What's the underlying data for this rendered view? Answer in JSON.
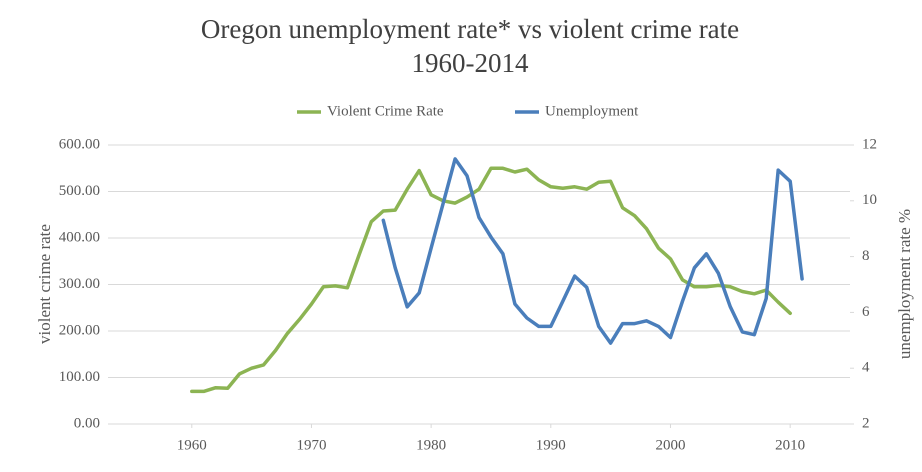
{
  "chart_data": {
    "type": "line",
    "title": "Oregon unemployment rate* vs violent crime rate",
    "subtitle": "1960-2014",
    "y_label": "violent crime rate",
    "y2_label": "unemployment rate %",
    "xlim": [
      1953,
      2015
    ],
    "xticks": [
      1960,
      1970,
      1980,
      1990,
      2000,
      2010
    ],
    "ylim": [
      0,
      600
    ],
    "yticks": [
      {
        "value": 0,
        "label": "0.00"
      },
      {
        "value": 100,
        "label": "100.00"
      },
      {
        "value": 200,
        "label": "200.00"
      },
      {
        "value": 300,
        "label": "300.00"
      },
      {
        "value": 400,
        "label": "400.00"
      },
      {
        "value": 500,
        "label": "500.00"
      },
      {
        "value": 600,
        "label": "600.00"
      }
    ],
    "y2lim": [
      2,
      12
    ],
    "y2ticks": [
      2,
      4,
      6,
      8,
      10,
      12
    ],
    "grid": true,
    "legend": "top",
    "series": [
      {
        "name": "Violent Crime Rate",
        "color": "#8cb453",
        "x": [
          1960,
          1961,
          1962,
          1963,
          1964,
          1965,
          1966,
          1967,
          1968,
          1969,
          1970,
          1971,
          1972,
          1973,
          1974,
          1975,
          1976,
          1977,
          1978,
          1979,
          1980,
          1981,
          1982,
          1983,
          1984,
          1985,
          1986,
          1987,
          1988,
          1989,
          1990,
          1991,
          1992,
          1993,
          1994,
          1995,
          1996,
          1997,
          1998,
          1999,
          2000,
          2001,
          2002,
          2003,
          2004,
          2005,
          2006,
          2007,
          2008,
          2009,
          2010
        ],
        "values": [
          70,
          70,
          78,
          77,
          108,
          120,
          127,
          158,
          195,
          225,
          258,
          295,
          297,
          293,
          365,
          435,
          458,
          460,
          505,
          545,
          493,
          480,
          475,
          488,
          505,
          550,
          550,
          542,
          548,
          525,
          510,
          507,
          510,
          505,
          520,
          522,
          465,
          448,
          420,
          378,
          355,
          310,
          295,
          295,
          298,
          295,
          285,
          280,
          288,
          262,
          238
        ]
      },
      {
        "name": "Unemployment",
        "color": "#4a7ebb",
        "axis": "y2",
        "x": [
          1976,
          1977,
          1978,
          1979,
          1980,
          1981,
          1982,
          1983,
          1984,
          1985,
          1986,
          1987,
          1988,
          1989,
          1990,
          1991,
          1992,
          1993,
          1994,
          1995,
          1996,
          1997,
          1998,
          1999,
          2000,
          2001,
          2002,
          2003,
          2004,
          2005,
          2006,
          2007,
          2008,
          2009,
          2010,
          2011
        ],
        "values": [
          9.3,
          7.6,
          6.2,
          6.7,
          8.3,
          9.9,
          11.5,
          10.9,
          9.4,
          8.7,
          8.1,
          6.3,
          5.8,
          5.5,
          5.5,
          6.4,
          7.3,
          6.9,
          5.5,
          4.9,
          5.6,
          5.6,
          5.7,
          5.5,
          5.1,
          6.4,
          7.6,
          8.1,
          7.4,
          6.2,
          5.3,
          5.2,
          6.5,
          11.1,
          10.7,
          7.2
        ]
      }
    ]
  }
}
